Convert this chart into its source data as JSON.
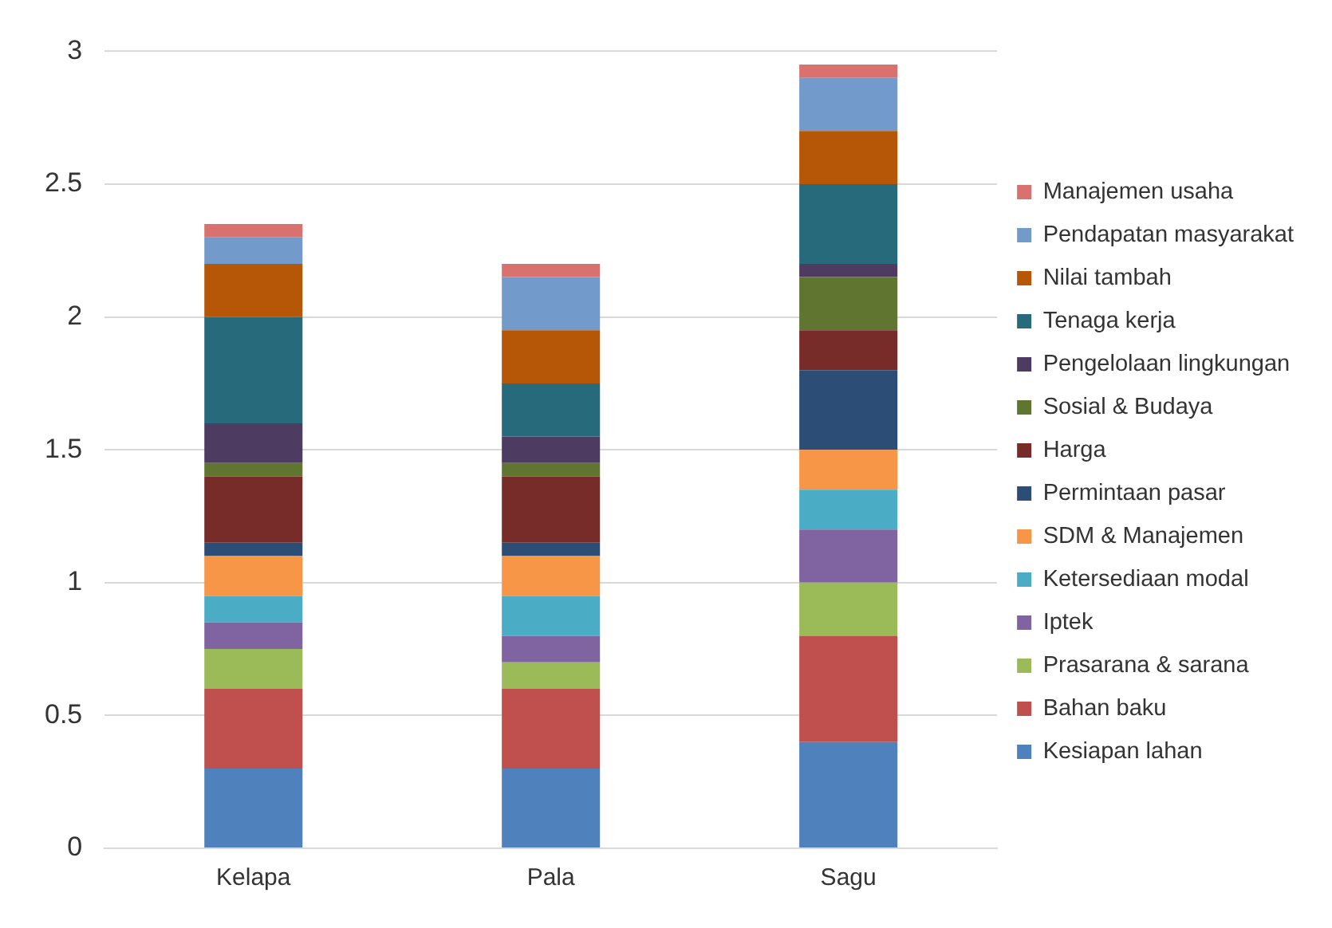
{
  "chart_data": {
    "type": "bar",
    "stacked": true,
    "categories": [
      "Kelapa",
      "Pala",
      "Sagu"
    ],
    "ylim": [
      0,
      3
    ],
    "yticks": [
      0,
      0.5,
      1,
      1.5,
      2,
      2.5,
      3
    ],
    "grid": "y",
    "legend": "right",
    "series": [
      {
        "name": "Kesiapan lahan",
        "color": "#4f81bd",
        "values": [
          0.3,
          0.3,
          0.4
        ]
      },
      {
        "name": "Bahan baku",
        "color": "#c0504d",
        "values": [
          0.3,
          0.3,
          0.4
        ]
      },
      {
        "name": "Prasarana & sarana",
        "color": "#9bbb59",
        "values": [
          0.15,
          0.1,
          0.2
        ]
      },
      {
        "name": "Iptek",
        "color": "#8064a2",
        "values": [
          0.1,
          0.1,
          0.2
        ]
      },
      {
        "name": "Ketersediaan modal",
        "color": "#4bacc6",
        "values": [
          0.1,
          0.15,
          0.15
        ]
      },
      {
        "name": "SDM & Manajemen",
        "color": "#f79646",
        "values": [
          0.15,
          0.15,
          0.15
        ]
      },
      {
        "name": "Permintaan pasar",
        "color": "#2c4d75",
        "values": [
          0.05,
          0.05,
          0.3
        ]
      },
      {
        "name": "Harga",
        "color": "#772c2a",
        "values": [
          0.25,
          0.25,
          0.15
        ]
      },
      {
        "name": "Sosial & Budaya",
        "color": "#5f7530",
        "values": [
          0.05,
          0.05,
          0.2
        ]
      },
      {
        "name": "Pengelolaan lingkungan",
        "color": "#4d3b62",
        "values": [
          0.15,
          0.1,
          0.05
        ]
      },
      {
        "name": "Tenaga kerja",
        "color": "#276a7c",
        "values": [
          0.4,
          0.2,
          0.3
        ]
      },
      {
        "name": "Nilai tambah",
        "color": "#b65708",
        "values": [
          0.2,
          0.2,
          0.2
        ]
      },
      {
        "name": "Pendapatan masyarakat",
        "color": "#729aca",
        "values": [
          0.1,
          0.2,
          0.2
        ]
      },
      {
        "name": "Manajemen usaha",
        "color": "#d9726f",
        "values": [
          0.05,
          0.05,
          0.05
        ]
      }
    ]
  }
}
